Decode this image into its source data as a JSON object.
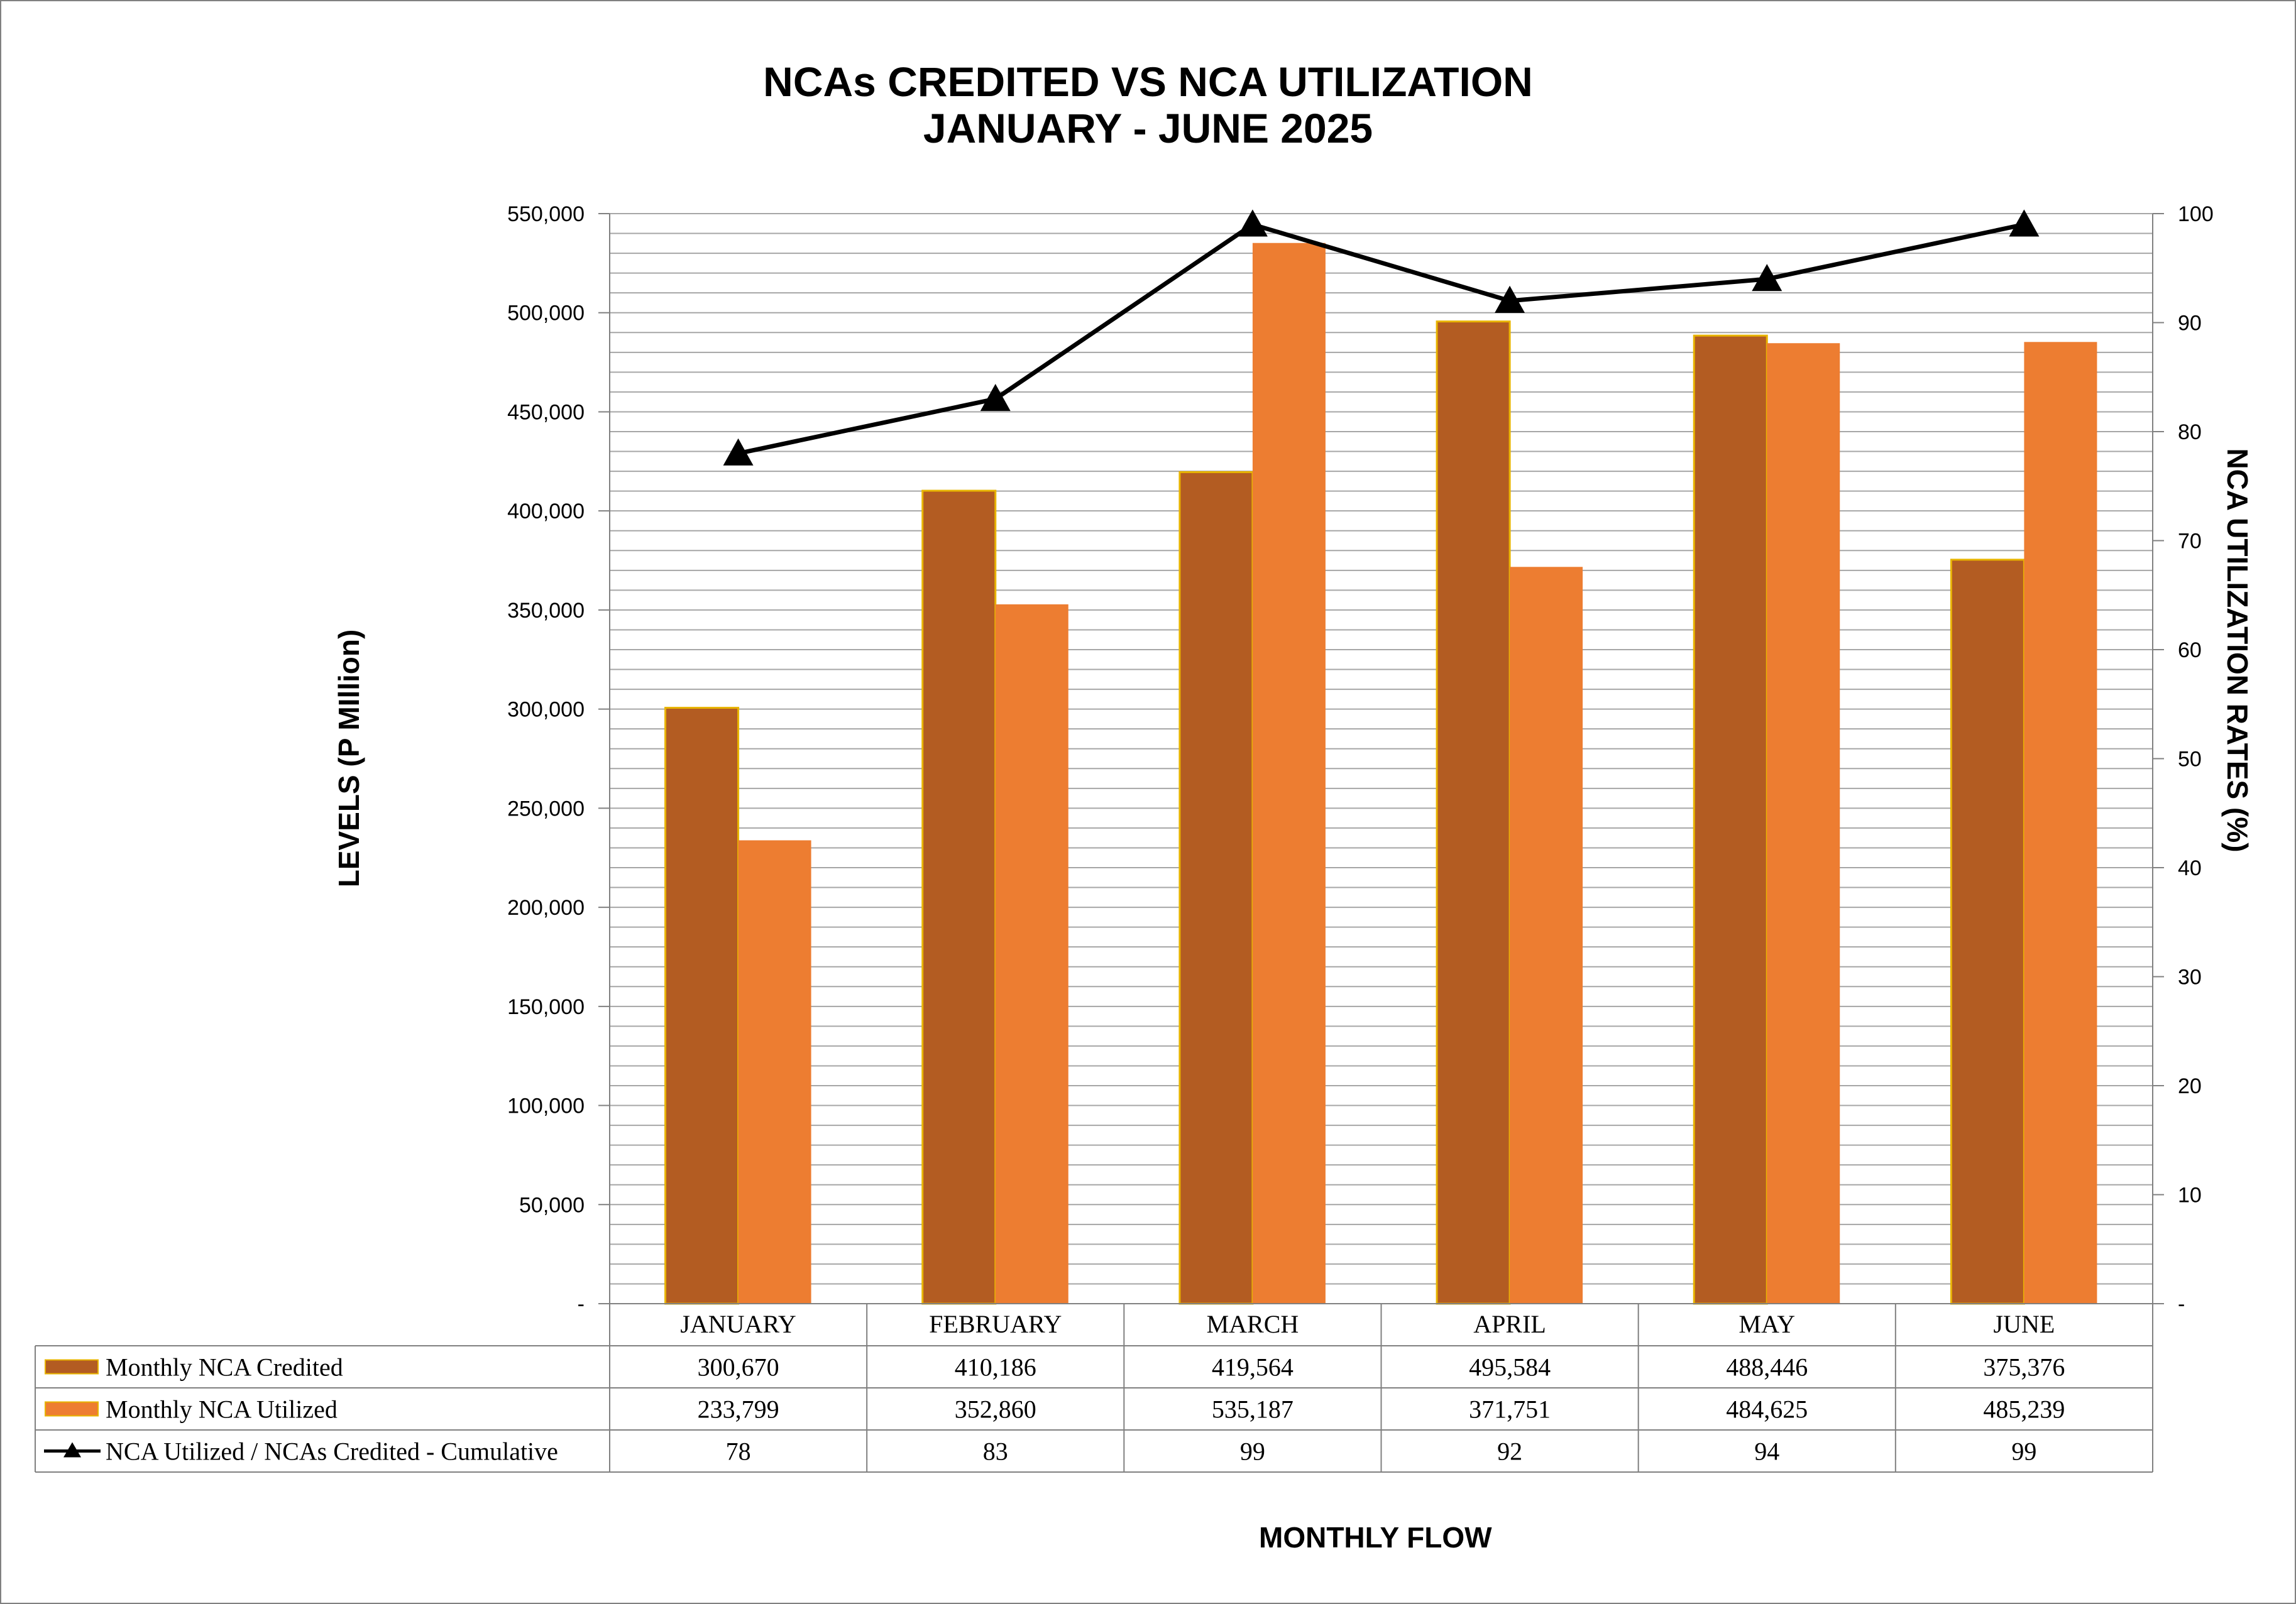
{
  "chart_data": {
    "type": "bar",
    "title": "NCAs CREDITED VS NCA UTILIZATION",
    "subtitle": "JANUARY - JUNE 2025",
    "xlabel": "MONTHLY FLOW",
    "ylabel": "LEVELS (P MIllion)",
    "y2label": "NCA UTILIZATION RATES (%)",
    "categories": [
      "JANUARY",
      "FEBRUARY",
      "MARCH",
      "APRIL",
      "MAY",
      "JUNE"
    ],
    "ylim": [
      0,
      550000
    ],
    "y_ticks": [
      0,
      50000,
      100000,
      150000,
      200000,
      250000,
      300000,
      350000,
      400000,
      450000,
      500000,
      550000
    ],
    "y_tick_labels": [
      "-",
      "50,000",
      "100,000",
      "150,000",
      "200,000",
      "250,000",
      "300,000",
      "350,000",
      "400,000",
      "450,000",
      "500,000",
      "550,000"
    ],
    "y2lim": [
      0,
      100
    ],
    "y2_ticks": [
      0,
      10,
      20,
      30,
      40,
      50,
      60,
      70,
      80,
      90,
      100
    ],
    "y2_tick_labels": [
      "-",
      "10",
      "20",
      "30",
      "40",
      "50",
      "60",
      "70",
      "80",
      "90",
      "100"
    ],
    "grid": true,
    "series": [
      {
        "name": "Monthly NCA Credited",
        "kind": "bar",
        "color": "#B35C22",
        "values": [
          300670,
          410186,
          419564,
          495584,
          488446,
          375376
        ],
        "labels": [
          "300,670",
          "410,186",
          "419,564",
          "495,584",
          "488,446",
          "375,376"
        ]
      },
      {
        "name": "Monthly NCA Utilized",
        "kind": "bar",
        "color": "#ED7D31",
        "values": [
          233799,
          352860,
          535187,
          371751,
          484625,
          485239
        ],
        "labels": [
          "233,799",
          "352,860",
          "535,187",
          "371,751",
          "484,625",
          "485,239"
        ]
      },
      {
        "name": "NCA Utilized / NCAs Credited - Cumulative",
        "kind": "line",
        "axis": "right",
        "color": "#000000",
        "values": [
          78,
          83,
          99,
          92,
          94,
          99
        ],
        "labels": [
          "78",
          "83",
          "99",
          "92",
          "94",
          "99"
        ]
      }
    ],
    "legend": "data-table"
  }
}
